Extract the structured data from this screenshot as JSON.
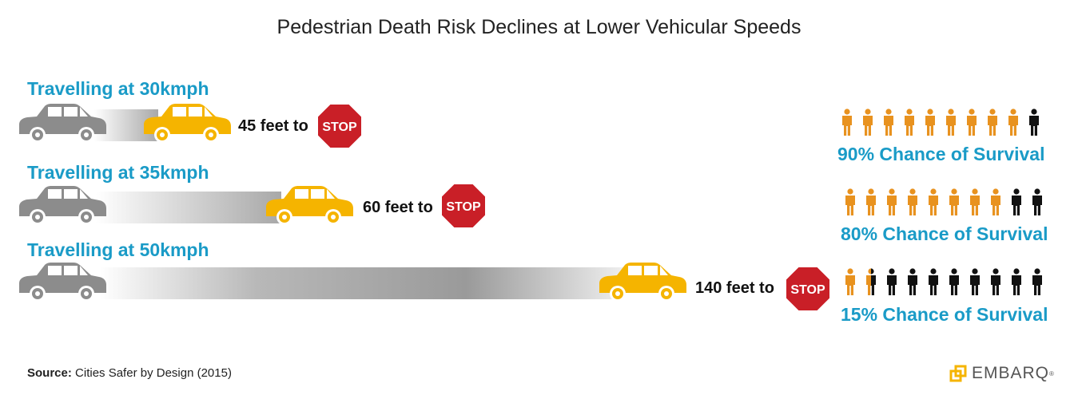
{
  "title": "Pedestrian Death Risk Declines at Lower Vehicular Speeds",
  "stop_text": "STOP",
  "rows": [
    {
      "label": "Travelling at 30kmph",
      "distance": "45 feet to",
      "survival": "90% Chance of Survival",
      "survivors": 9,
      "total": 10
    },
    {
      "label": "Travelling at 35kmph",
      "distance": "60 feet to",
      "survival": "80% Chance of Survival",
      "survivors": 8,
      "total": 10
    },
    {
      "label": "Travelling at 50kmph",
      "distance": "140 feet to",
      "survival": "15% Chance of Survival",
      "survivors": 1.5,
      "total": 10
    }
  ],
  "source": {
    "label": "Source:",
    "text": "Cities Safer by Design (2015)"
  },
  "logo": {
    "text": "EMBARQ",
    "mark": "®"
  },
  "colors": {
    "accent": "#1a9bc7",
    "car_moving": "#f5b400",
    "car_parked": "#8c8c8c",
    "stop_sign": "#c91f27",
    "survivor": "#e8921f",
    "casualty": "#111111"
  }
}
